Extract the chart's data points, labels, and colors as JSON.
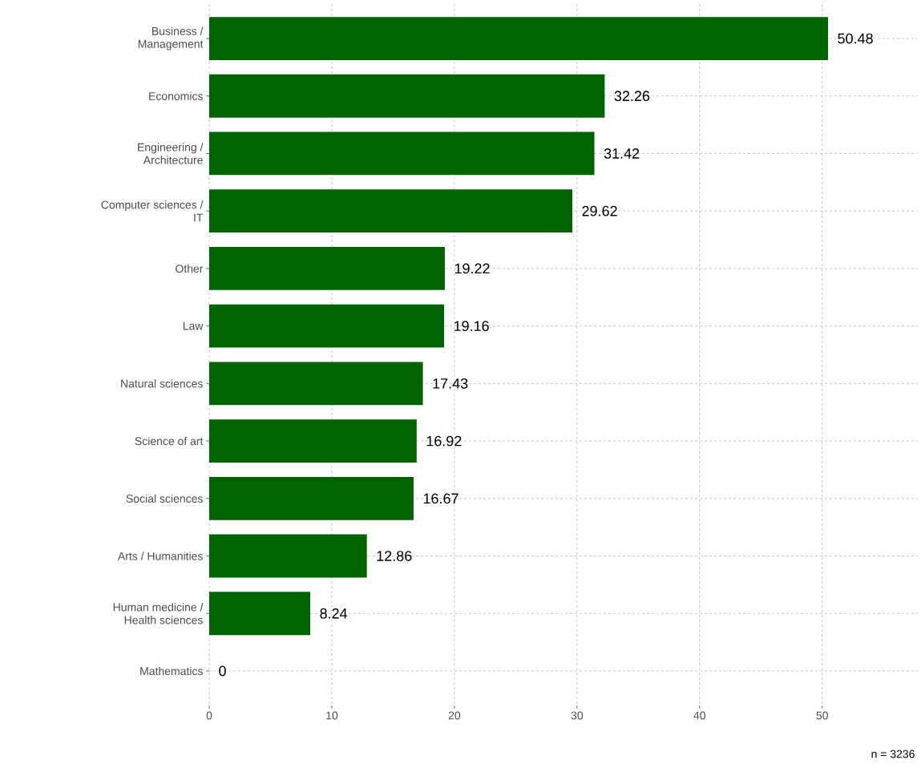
{
  "chart_data": {
    "type": "bar",
    "orientation": "horizontal",
    "categories": [
      "Business / Management",
      "Economics",
      "Engineering / Architecture",
      "Computer sciences / IT",
      "Other",
      "Law",
      "Natural sciences",
      "Science of art",
      "Social sciences",
      "Arts / Humanities",
      "Human medicine / Health sciences",
      "Mathematics"
    ],
    "values": [
      50.48,
      32.26,
      31.42,
      29.62,
      19.22,
      19.16,
      17.43,
      16.92,
      16.67,
      12.86,
      8.24,
      0
    ],
    "color": "#006400",
    "xlim": [
      0,
      57.8
    ],
    "xticks": [
      0,
      10,
      20,
      30,
      40,
      50
    ],
    "grid": true,
    "data_labels": true,
    "annotations": [
      "n = 3236"
    ]
  }
}
